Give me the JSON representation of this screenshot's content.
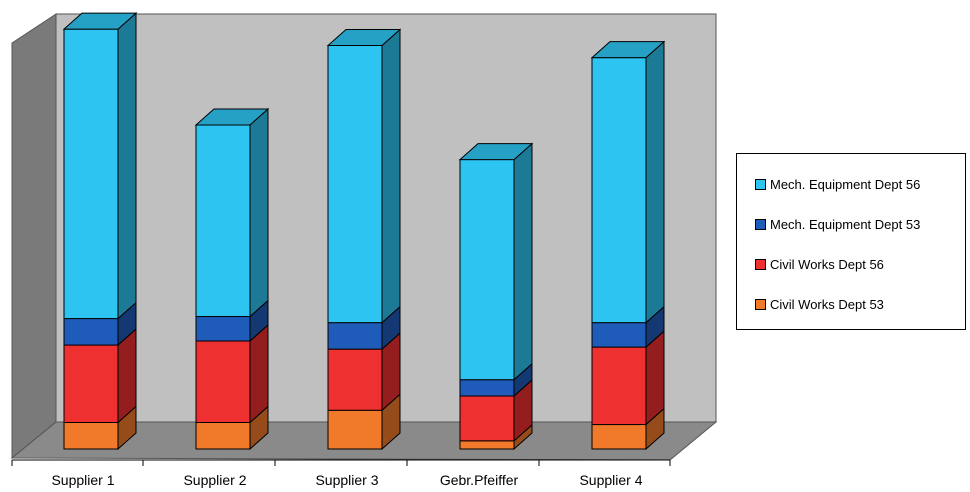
{
  "chart_data": {
    "type": "bar",
    "stacked": true,
    "three_d": true,
    "categories": [
      "Supplier 1",
      "Supplier 2",
      "Supplier 3",
      "Gebr.Pfeiffer",
      "Supplier 4"
    ],
    "series": [
      {
        "name": "Civil Works Dept 53",
        "color": "#f07a2a",
        "values": [
          6.5,
          6.5,
          9.5,
          2,
          6
        ]
      },
      {
        "name": "Civil Works Dept 56",
        "color": "#ee3031",
        "values": [
          19,
          20,
          15,
          11,
          19
        ]
      },
      {
        "name": "Mech. Equipment Dept 53",
        "color": "#1f5bb8",
        "values": [
          6.5,
          6,
          6.5,
          4,
          6
        ]
      },
      {
        "name": "Mech. Equipment Dept 56",
        "color": "#2ec4f2",
        "values": [
          71,
          47,
          68,
          54,
          65
        ]
      }
    ],
    "legend_position": "right",
    "ylim": [
      0,
      105
    ],
    "grid": false,
    "colors": {
      "wall": "#c0c0c0",
      "floor": "#8a8a8a",
      "side_wall": "#7a7a7a"
    }
  }
}
